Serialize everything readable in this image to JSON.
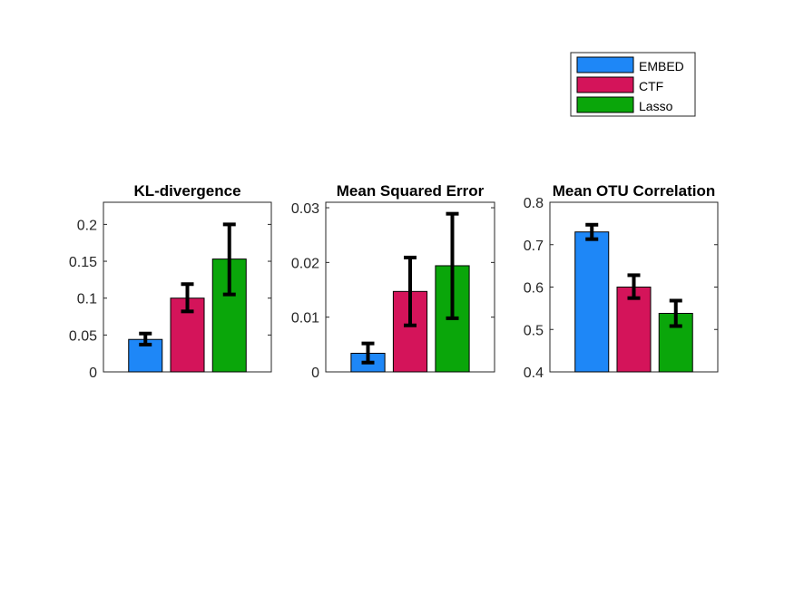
{
  "legend": {
    "entries": [
      {
        "label": "EMBED",
        "color": "#1E87F7"
      },
      {
        "label": "CTF",
        "color": "#D4145A"
      },
      {
        "label": "Lasso",
        "color": "#0AA60A"
      }
    ]
  },
  "chart_data": [
    {
      "type": "bar",
      "title": "KL-divergence",
      "xlabel": "",
      "ylabel": "",
      "ylim": [
        0,
        0.23
      ],
      "yticks": [
        0,
        0.05,
        0.1,
        0.15,
        0.2
      ],
      "ytick_labels": [
        "0",
        "0.05",
        "0.1",
        "0.15",
        "0.2"
      ],
      "series": [
        {
          "name": "EMBED",
          "value": 0.044,
          "err_low": 0.037,
          "err_high": 0.052
        },
        {
          "name": "CTF",
          "value": 0.1,
          "err_low": 0.082,
          "err_high": 0.119
        },
        {
          "name": "Lasso",
          "value": 0.153,
          "err_low": 0.105,
          "err_high": 0.2
        }
      ]
    },
    {
      "type": "bar",
      "title": "Mean Squared Error",
      "xlabel": "",
      "ylabel": "",
      "ylim": [
        0,
        0.031
      ],
      "yticks": [
        0,
        0.01,
        0.02,
        0.03
      ],
      "ytick_labels": [
        "0",
        "0.01",
        "0.02",
        "0.03"
      ],
      "series": [
        {
          "name": "EMBED",
          "value": 0.0034,
          "err_low": 0.0017,
          "err_high": 0.0052
        },
        {
          "name": "CTF",
          "value": 0.0147,
          "err_low": 0.0085,
          "err_high": 0.0209
        },
        {
          "name": "Lasso",
          "value": 0.0194,
          "err_low": 0.0098,
          "err_high": 0.0289
        }
      ]
    },
    {
      "type": "bar",
      "title": "Mean OTU Correlation",
      "xlabel": "",
      "ylabel": "",
      "ylim": [
        0.4,
        0.8
      ],
      "yticks": [
        0.4,
        0.5,
        0.6,
        0.7,
        0.8
      ],
      "ytick_labels": [
        "0.4",
        "0.5",
        "0.6",
        "0.7",
        "0.8"
      ],
      "series": [
        {
          "name": "EMBED",
          "value": 0.73,
          "err_low": 0.713,
          "err_high": 0.747
        },
        {
          "name": "CTF",
          "value": 0.6,
          "err_low": 0.574,
          "err_high": 0.628
        },
        {
          "name": "Lasso",
          "value": 0.538,
          "err_low": 0.508,
          "err_high": 0.568
        }
      ]
    }
  ]
}
